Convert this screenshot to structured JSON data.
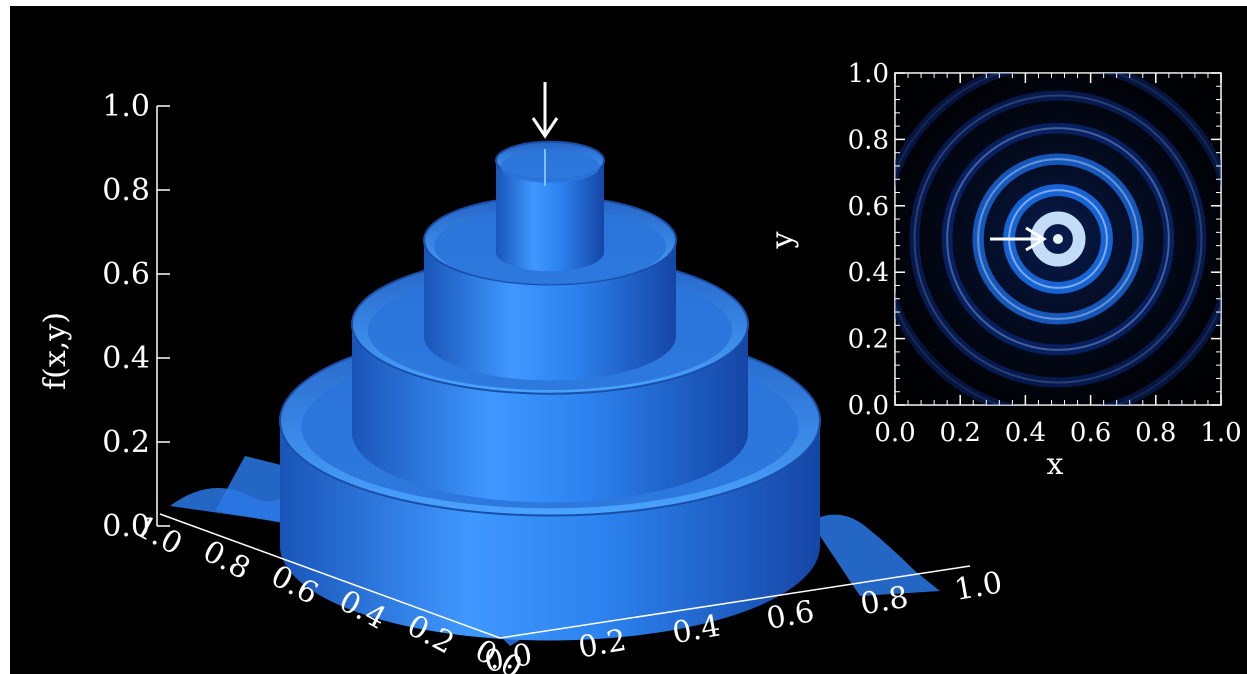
{
  "chart_data": [
    {
      "type": "surface",
      "zlabel": "f(x,y)",
      "zlim": [
        0,
        1
      ],
      "z_ticks": [
        "0.0",
        "0.2",
        "0.4",
        "0.6",
        "0.8",
        "1.0"
      ],
      "x_ticks": [
        "0.0",
        "0.2",
        "0.4",
        "0.6",
        "0.8",
        "1.0"
      ],
      "y_ticks": [
        "0.0",
        "0.2",
        "0.4",
        "0.6",
        "0.8",
        "1.0"
      ],
      "surface_color": "#2f86f0",
      "tiers": [
        {
          "radius": 0.45,
          "height": 0.25
        },
        {
          "radius": 0.33,
          "height": 0.48
        },
        {
          "radius": 0.21,
          "height": 0.68
        },
        {
          "radius": 0.09,
          "height": 0.87
        }
      ],
      "peak": {
        "x": 0.5,
        "y": 0.5,
        "z": 0.9
      },
      "annotation": "arrow-down"
    },
    {
      "type": "heatmap",
      "xlabel": "x",
      "ylabel": "y",
      "xlim": [
        0,
        1
      ],
      "ylim": [
        0,
        1
      ],
      "x_ticks": [
        "0.0",
        "0.2",
        "0.4",
        "0.6",
        "0.8",
        "1.0"
      ],
      "y_ticks": [
        "0.0",
        "0.2",
        "0.4",
        "0.6",
        "0.8",
        "1.0"
      ],
      "colormap": [
        "#000000",
        "#0b2f8f",
        "#1d74f2",
        "#cfe7ff"
      ],
      "center": [
        0.5,
        0.5
      ],
      "rings": [
        {
          "radius": 0.0,
          "intensity": 1.0
        },
        {
          "radius": 0.065,
          "intensity": 0.92
        },
        {
          "radius": 0.15,
          "intensity": 0.75
        },
        {
          "radius": 0.245,
          "intensity": 0.58
        },
        {
          "radius": 0.34,
          "intensity": 0.42
        },
        {
          "radius": 0.44,
          "intensity": 0.25
        },
        {
          "radius": 0.54,
          "intensity": 0.12
        }
      ],
      "annotation": "arrow-right"
    }
  ]
}
